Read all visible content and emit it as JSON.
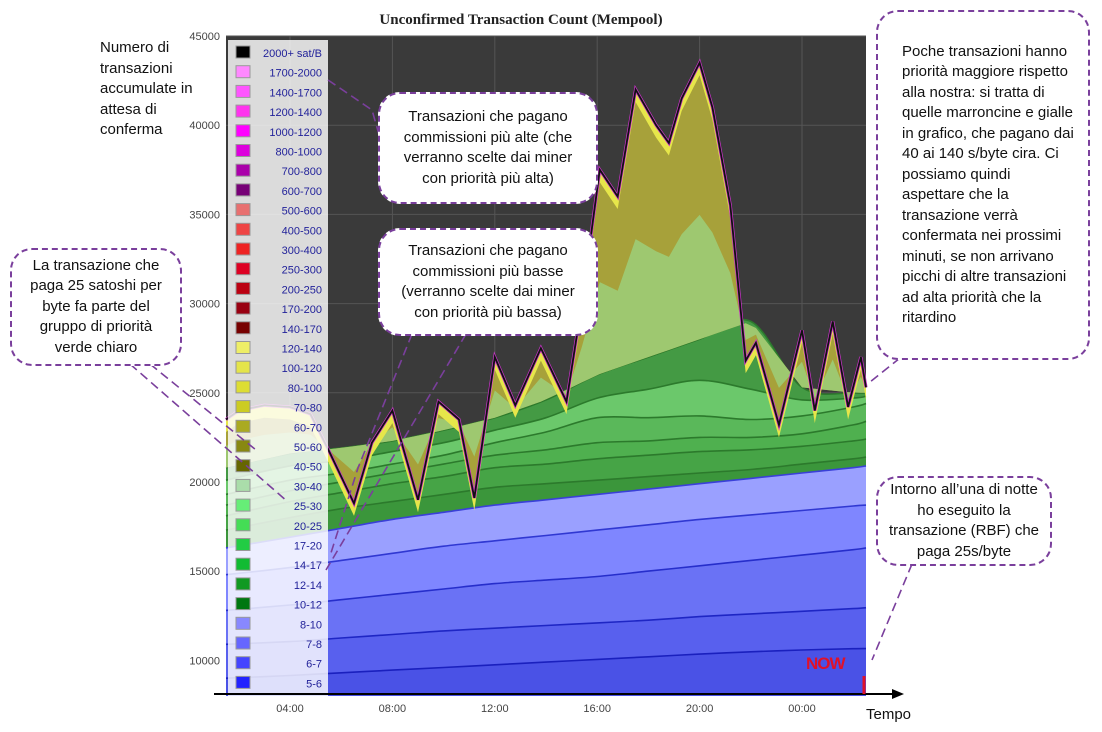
{
  "chart_data": {
    "type": "area",
    "title": "Unconfirmed Transaction Count (Mempool)",
    "xlabel": "Tempo",
    "ylabel": "Numero di transazioni accumulate in attesa di conferma",
    "ylim": [
      8000,
      45000
    ],
    "xlim": [
      1.5,
      26.5
    ],
    "x_unit": "hour of day (values past 24 are after midnight)",
    "y_ticks": [
      10000,
      15000,
      20000,
      25000,
      30000,
      35000,
      40000,
      45000
    ],
    "x_ticks": [
      "04:00",
      "08:00",
      "12:00",
      "16:00",
      "20:00",
      "00:00"
    ],
    "legend_placement": "top-left",
    "legend": [
      "2000+ sat/B",
      "1700-2000",
      "1400-1700",
      "1200-1400",
      "1000-1200",
      "800-1000",
      "700-800",
      "600-700",
      "500-600",
      "400-500",
      "300-400",
      "250-300",
      "200-250",
      "170-200",
      "140-170",
      "120-140",
      "100-120",
      "80-100",
      "70-80",
      "60-70",
      "50-60",
      "40-50",
      "30-40",
      "25-30",
      "20-25",
      "17-20",
      "14-17",
      "12-14",
      "10-12",
      "8-10",
      "7-8",
      "6-7",
      "5-6"
    ],
    "band_tops": {
      "x": [
        1.5,
        4,
        6,
        8,
        10,
        12,
        14,
        16,
        18,
        20,
        22,
        24,
        26,
        26.5
      ],
      "5-6": [
        9000,
        9150,
        9300,
        9450,
        9600,
        9750,
        9900,
        10050,
        10200,
        10350,
        10480,
        10580,
        10650,
        10660
      ],
      "6-7": [
        10900,
        11050,
        11250,
        11450,
        11650,
        11800,
        11950,
        12100,
        12250,
        12450,
        12600,
        12750,
        12900,
        12950
      ],
      "7-8": [
        12800,
        13100,
        13400,
        13700,
        14000,
        14300,
        14500,
        14700,
        15000,
        15300,
        15600,
        15900,
        16200,
        16300
      ],
      "8-10": [
        14800,
        15200,
        15600,
        16000,
        16400,
        16700,
        17000,
        17300,
        17600,
        17900,
        18150,
        18400,
        18650,
        18700
      ],
      "10-12": [
        16300,
        16900,
        17400,
        17900,
        18300,
        18700,
        19000,
        19300,
        19600,
        19900,
        20200,
        20500,
        20800,
        20900
      ],
      "12-14": [
        17300,
        18000,
        18500,
        18900,
        19300,
        19700,
        19900,
        20100,
        20300,
        20500,
        20700,
        21000,
        21300,
        21400
      ],
      "14-17": [
        18100,
        18900,
        19400,
        19900,
        20300,
        20800,
        21000,
        21300,
        21500,
        21700,
        21800,
        22000,
        22300,
        22400
      ],
      "17-20": [
        18700,
        19500,
        20000,
        20500,
        21000,
        21500,
        21800,
        22200,
        22300,
        22500,
        22500,
        22700,
        23200,
        23400
      ],
      "20-25": [
        19300,
        20100,
        20500,
        21000,
        21500,
        22200,
        22800,
        23600,
        23600,
        23700,
        23500,
        23700,
        24200,
        24400
      ],
      "25-30": [
        20100,
        20900,
        21200,
        21700,
        22200,
        22900,
        23600,
        24700,
        25200,
        25700,
        25200,
        24600,
        24700,
        24800
      ],
      "30-40": [
        20800,
        21600,
        21900,
        22300,
        22900,
        23600,
        24600,
        26000,
        27000,
        28000,
        29000,
        25300,
        25000,
        25000
      ]
    },
    "total_mempool": {
      "x": [
        1.5,
        2,
        3,
        4,
        4.8,
        5.5,
        6.5,
        7.2,
        8,
        9,
        9.8,
        10.6,
        11.2,
        12,
        12.8,
        13.8,
        14.8,
        15.4,
        16.1,
        16.8,
        17.5,
        18.3,
        18.8,
        19.3,
        20,
        20.5,
        21.2,
        21.8,
        22.2,
        23.1,
        24,
        24.5,
        25.2,
        25.8,
        26.3,
        26.5
      ],
      "y": [
        23500,
        24000,
        24300,
        24200,
        23800,
        21800,
        18800,
        22200,
        24000,
        19000,
        24500,
        23500,
        19100,
        27000,
        24300,
        27500,
        24500,
        30000,
        37500,
        36000,
        42000,
        40000,
        39000,
        41500,
        43500,
        41000,
        35500,
        26800,
        27800,
        23200,
        28500,
        24000,
        29000,
        24200,
        27000,
        25300
      ]
    }
  },
  "legend_colors": [
    "#000000",
    "#ff88ff",
    "#ff55ff",
    "#ff33ee",
    "#ff00ff",
    "#dd00dd",
    "#aa00aa",
    "#770077",
    "#e87070",
    "#ee4444",
    "#ee2222",
    "#dd0022",
    "#bb0011",
    "#990011",
    "#770000",
    "#eeee66",
    "#e4e44a",
    "#dddd33",
    "#cccc22",
    "#aaaa22",
    "#888811",
    "#666600",
    "#aaddaa",
    "#66ee77",
    "#44dd55",
    "#22cc44",
    "#11bb33",
    "#119922",
    "#007711",
    "#8888ff",
    "#6666ff",
    "#4444ff",
    "#2222ff"
  ],
  "notes": {
    "ylabel_note": "Numero di transazioni accumulate in attesa di conferma",
    "high_fees": "Transazioni che pagano commissioni più alte (che verranno scelte dai miner con priorità più alta)",
    "low_fees": "Transazioni che pagano commissioni più basse (verranno scelte dai miner con priorità più bassa)",
    "our_tx": "La transazione che paga 25 satoshi per byte fa parte del gruppo di priorità verde chiaro",
    "priority": "Poche transazioni hanno priorità maggiore rispetto alla nostra: si tratta di quelle marroncine e gialle in grafico, che pagano dai 40 ai 140 s/byte cira. Ci possiamo quindi aspettare che la transazione verrà confermata nei prossimi minuti, se non arrivano picchi di altre transazioni ad alta priorità che la ritardino",
    "rbf": "Intorno all’una di notte ho eseguito la transazione (RBF) che paga 25s/byte",
    "now": "NOW",
    "tempo": "Tempo"
  }
}
